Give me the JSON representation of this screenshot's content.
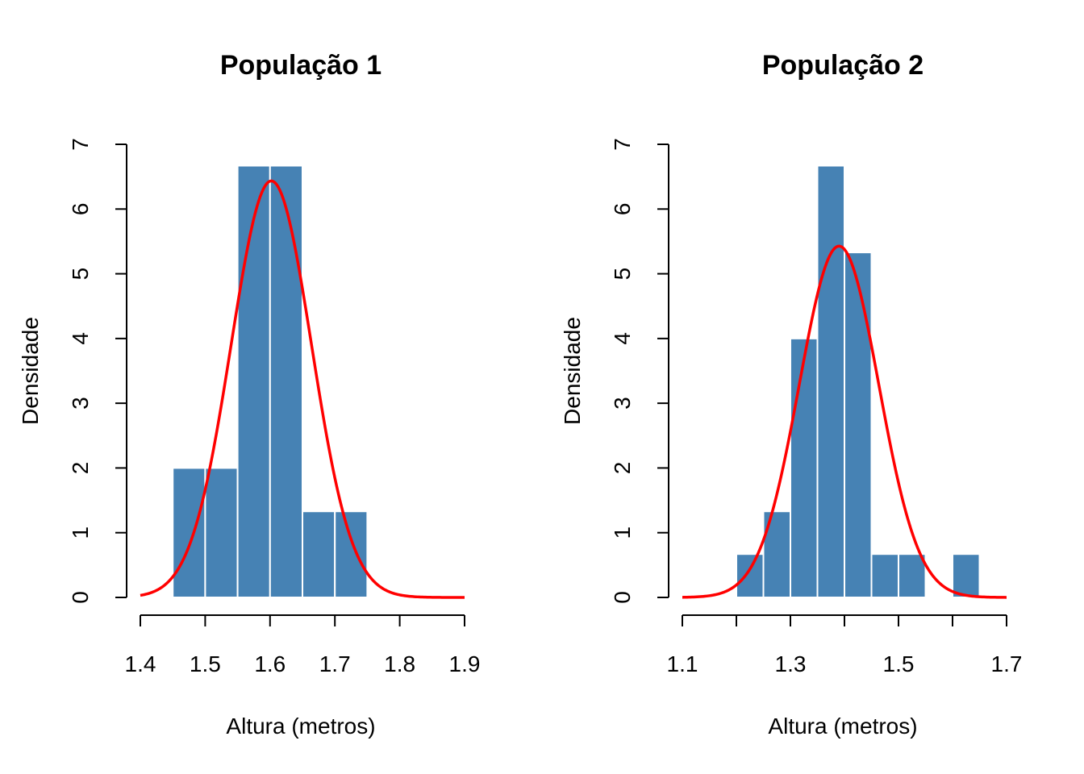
{
  "colors": {
    "bar": "#4682B4",
    "curve": "#FF0000",
    "bar_border": "#FFFFFF"
  },
  "chart_data": [
    {
      "type": "bar",
      "title": "População 1",
      "xlabel": "Altura (metros)",
      "ylabel": "Densidade",
      "xlim": [
        1.4,
        1.9
      ],
      "ylim": [
        0,
        7
      ],
      "x_ticks": [
        "1.4",
        "1.5",
        "1.6",
        "1.7",
        "1.8",
        "1.9"
      ],
      "y_ticks": [
        "0",
        "1",
        "2",
        "3",
        "4",
        "5",
        "6",
        "7"
      ],
      "bins": [
        {
          "x0": 1.45,
          "x1": 1.5,
          "density": 2.0
        },
        {
          "x0": 1.5,
          "x1": 1.55,
          "density": 2.0
        },
        {
          "x0": 1.55,
          "x1": 1.6,
          "density": 6.67
        },
        {
          "x0": 1.6,
          "x1": 1.65,
          "density": 6.67
        },
        {
          "x0": 1.65,
          "x1": 1.7,
          "density": 1.33
        },
        {
          "x0": 1.7,
          "x1": 1.75,
          "density": 1.33
        }
      ],
      "density_curve": {
        "type": "normal",
        "mean": 1.602,
        "sd": 0.062,
        "x_range": [
          1.4,
          1.9
        ]
      }
    },
    {
      "type": "bar",
      "title": "População 2",
      "xlabel": "Altura (metros)",
      "ylabel": "Densidade",
      "xlim": [
        1.1,
        1.7
      ],
      "ylim": [
        0,
        7
      ],
      "x_ticks": [
        "1.1",
        "1.3",
        "1.5",
        "1.7"
      ],
      "x_tick_marks": [
        1.1,
        1.2,
        1.3,
        1.4,
        1.5,
        1.6,
        1.7
      ],
      "y_ticks": [
        "0",
        "1",
        "2",
        "3",
        "4",
        "5",
        "6",
        "7"
      ],
      "bins": [
        {
          "x0": 1.2,
          "x1": 1.25,
          "density": 0.67
        },
        {
          "x0": 1.25,
          "x1": 1.3,
          "density": 1.33
        },
        {
          "x0": 1.3,
          "x1": 1.35,
          "density": 4.0
        },
        {
          "x0": 1.35,
          "x1": 1.4,
          "density": 6.67
        },
        {
          "x0": 1.4,
          "x1": 1.45,
          "density": 5.33
        },
        {
          "x0": 1.45,
          "x1": 1.5,
          "density": 0.67
        },
        {
          "x0": 1.5,
          "x1": 1.55,
          "density": 0.67
        },
        {
          "x0": 1.55,
          "x1": 1.6,
          "density": 0
        },
        {
          "x0": 1.6,
          "x1": 1.65,
          "density": 0.67
        }
      ],
      "density_curve": {
        "type": "normal",
        "mean": 1.39,
        "sd": 0.0735,
        "x_range": [
          1.1,
          1.7
        ]
      }
    }
  ]
}
